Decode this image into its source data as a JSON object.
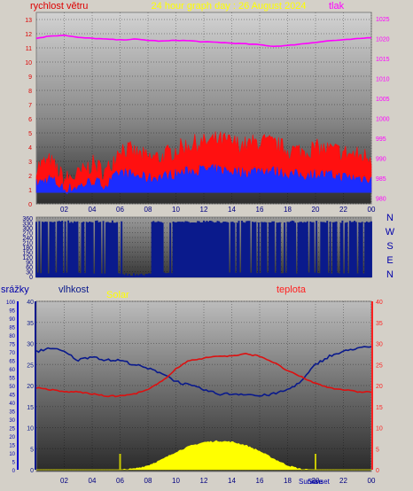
{
  "colors": {
    "wind_avg": "#1c2cff",
    "wind_gust": "#ff1010",
    "pressure": "#ff00ff",
    "direction": "#0a1a8c",
    "humidity": "#0a1a8c",
    "temperature": "#dd1010",
    "solar": "#ffff00",
    "rain_axis": "#0000cc",
    "humidity_axis": "#0a1a8c",
    "temp_axis": "#ff2020",
    "title": "#ffff00"
  },
  "top": {
    "title": "24 hour graph day : 26 August 2024",
    "left_label": "rychlost větru",
    "right_label": "tlak"
  },
  "middle": {
    "compass": [
      "N",
      "W",
      "S",
      "E",
      "N"
    ]
  },
  "bottom": {
    "rain_label": "srážky",
    "humidity_label": "vlhkost",
    "solar_label": "Solar",
    "temp_label": "teplota",
    "sunrise_label": "Sunrise",
    "sunset_label": "Sunset"
  },
  "chart_data": [
    {
      "type": "line",
      "title": "24 hour graph day : 26 August 2024",
      "x_ticks": [
        "02",
        "04",
        "06",
        "08",
        "10",
        "12",
        "14",
        "16",
        "18",
        "20",
        "22",
        "00"
      ],
      "y_left_ticks": [
        0,
        1,
        2,
        3,
        4,
        5,
        6,
        7,
        8,
        9,
        10,
        11,
        12,
        13
      ],
      "y_left_range": [
        0,
        13.5
      ],
      "y_right_ticks": [
        980,
        985,
        990,
        995,
        1000,
        1005,
        1010,
        1015,
        1020,
        1025
      ],
      "y_right_range": [
        978.5,
        1026.5
      ],
      "x": [
        0,
        1,
        2,
        3,
        4,
        5,
        6,
        7,
        8,
        9,
        10,
        11,
        12,
        13,
        14,
        15,
        16,
        17,
        18,
        19,
        20,
        21,
        22,
        23,
        24
      ],
      "series": [
        {
          "name": "rychlost větru",
          "role": "gust",
          "axis": "left",
          "values": [
            2.6,
            3.0,
            1.7,
            2.0,
            2.8,
            2.2,
            4.0,
            3.6,
            3.2,
            3.3,
            3.8,
            4.2,
            4.3,
            4.5,
            4.3,
            4.1,
            4.4,
            4.2,
            3.8,
            3.7,
            3.9,
            3.8,
            3.6,
            3.4,
            3.3
          ]
        },
        {
          "name": "",
          "role": "average",
          "axis": "left",
          "values": [
            1.4,
            1.8,
            1.0,
            1.2,
            1.6,
            1.3,
            2.2,
            2.0,
            1.8,
            1.9,
            2.1,
            2.3,
            2.4,
            2.4,
            2.3,
            2.2,
            2.4,
            2.3,
            2.1,
            2.0,
            2.1,
            2.0,
            1.9,
            1.8,
            1.8
          ]
        },
        {
          "name": "tlak",
          "axis": "right",
          "values": [
            1020.0,
            1020.6,
            1020.8,
            1020.2,
            1020.0,
            1019.8,
            1019.6,
            1019.8,
            1019.5,
            1019.3,
            1019.5,
            1019.4,
            1019.1,
            1019.0,
            1018.8,
            1018.6,
            1018.4,
            1018.0,
            1018.2,
            1018.6,
            1019.0,
            1019.4,
            1019.6,
            1019.9,
            1020.2
          ]
        }
      ]
    },
    {
      "type": "line",
      "title": "",
      "x_ticks": [],
      "y_ticks": [
        0,
        30,
        60,
        90,
        120,
        150,
        180,
        210,
        240,
        270,
        300,
        330,
        360
      ],
      "y_range": [
        0,
        360
      ],
      "x": [
        0,
        1,
        2,
        3,
        4,
        5,
        6,
        7,
        8,
        9,
        10,
        11,
        12,
        13,
        14,
        15,
        16,
        17,
        18,
        19,
        20,
        21,
        22,
        23,
        24
      ],
      "series": [
        {
          "name": "",
          "values": [
            355,
            355,
            355,
            355,
            350,
            355,
            20,
            10,
            355,
            355,
            350,
            355,
            355,
            355,
            350,
            355,
            355,
            355,
            350,
            355,
            355,
            355,
            355,
            355,
            355
          ]
        }
      ]
    },
    {
      "type": "area",
      "x_ticks": [
        "02",
        "04",
        "06",
        "08",
        "10",
        "12",
        "14",
        "16",
        "18",
        "20",
        "22",
        "00"
      ],
      "rain_ticks": [
        0,
        5,
        10,
        15,
        20,
        25,
        30,
        35,
        40,
        45,
        50,
        55,
        60,
        65,
        70,
        75,
        80,
        85,
        90,
        95,
        100
      ],
      "rain_range": [
        0,
        100
      ],
      "humidity_ticks": [
        0,
        5,
        10,
        15,
        20,
        25,
        30,
        35,
        40
      ],
      "humidity_range": [
        0,
        40
      ],
      "temp_ticks": [
        0,
        5,
        10,
        15,
        20,
        25,
        30,
        35,
        40
      ],
      "temp_range": [
        0,
        40
      ],
      "x": [
        0,
        1,
        2,
        3,
        4,
        5,
        6,
        7,
        8,
        9,
        10,
        11,
        12,
        13,
        14,
        15,
        16,
        17,
        18,
        19,
        20,
        21,
        22,
        23,
        24
      ],
      "series": [
        {
          "name": "vlhkost",
          "axis": "humidity",
          "values": [
            28,
            29,
            28,
            26,
            27,
            26,
            26,
            25,
            24,
            23,
            21,
            20,
            19,
            18,
            18,
            18,
            17.5,
            18,
            19,
            21,
            25,
            27,
            28,
            29,
            29
          ]
        },
        {
          "name": "teplota",
          "axis": "temp",
          "values": [
            19.5,
            19,
            18.5,
            18.5,
            18,
            17.5,
            17.5,
            18,
            19,
            21,
            24,
            26,
            26.5,
            27,
            27,
            27.5,
            27,
            25.5,
            23.5,
            22,
            20.5,
            19.5,
            19,
            18.5,
            18.5
          ]
        },
        {
          "name": "Solar",
          "axis": "solar_scaled",
          "values": [
            0,
            0,
            0,
            0,
            0,
            0,
            0,
            0.2,
            1.0,
            2.4,
            4.2,
            5.6,
            6.5,
            6.8,
            6.6,
            5.8,
            4.4,
            2.6,
            1.0,
            0.1,
            0,
            0,
            0,
            0,
            0
          ]
        }
      ],
      "events": [
        {
          "label": "Sunrise",
          "x": 6.0
        },
        {
          "label": "Sunset",
          "x": 20.0
        }
      ]
    }
  ]
}
